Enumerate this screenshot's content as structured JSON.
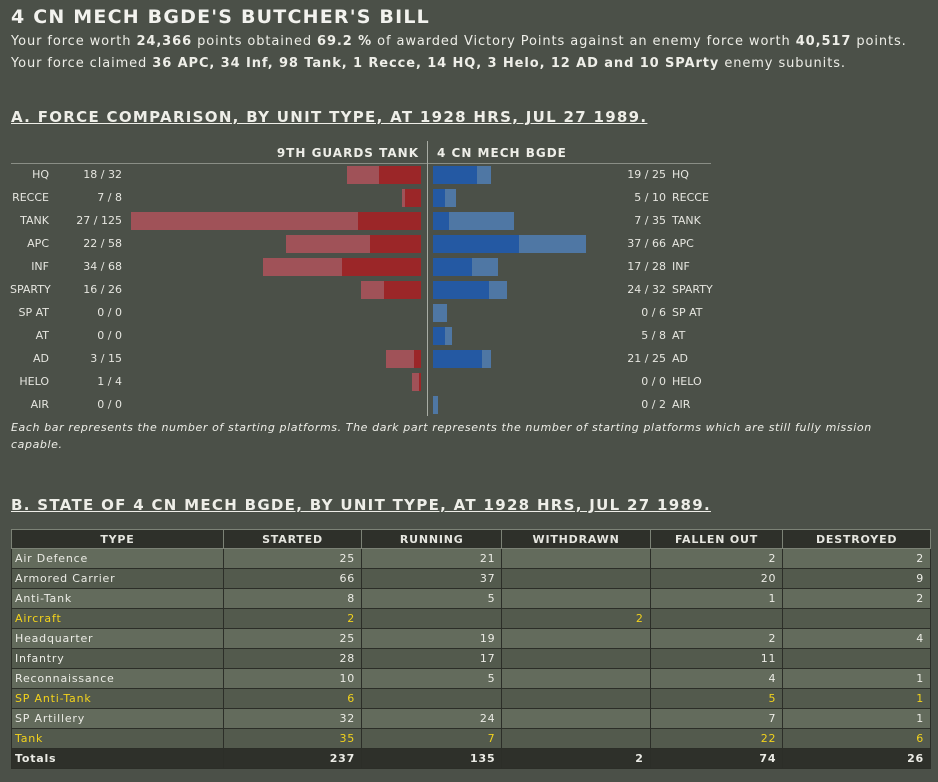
{
  "title": "4 CN MECH BGDE'S BUTCHER'S BILL",
  "summary": {
    "line1_a": "Your force worth ",
    "own_points": "24,366",
    "line1_b": " points obtained ",
    "vp_percent": "69.2 %",
    "line1_c": " of awarded Victory Points against an enemy force worth ",
    "enemy_points": "40,517",
    "line1_d": " points.",
    "line2_a": "Your force claimed ",
    "claims": "36 APC, 34 Inf, 98 Tank, 1 Recce, 14 HQ, 3 Helo, 12 AD and 10 SPArty",
    "line2_b": " enemy subunits."
  },
  "section_a": {
    "heading": "A. FORCE COMPARISON, BY UNIT TYPE, AT 1928 HRS, JUL 27 1989.",
    "enemy_name": "9TH GUARDS TANK",
    "own_name": "4 CN MECH BGDE",
    "note": "Each bar represents the number of starting platforms. The dark part represents the number of starting platforms which are still fully mission capable.",
    "colors": {
      "enemy_total": "#a05258",
      "enemy_running": "#9b2628",
      "own_total": "#4f77a4",
      "own_running": "#2459a3"
    },
    "rows": [
      {
        "type": "HQ",
        "enemy_label": "18 / 32",
        "enemy_running": 18,
        "enemy_total": 32,
        "own_label": "19 / 25",
        "own_running": 19,
        "own_total": 25
      },
      {
        "type": "RECCE",
        "enemy_label": "7 / 8",
        "enemy_running": 7,
        "enemy_total": 8,
        "own_label": "5 / 10",
        "own_running": 5,
        "own_total": 10
      },
      {
        "type": "TANK",
        "enemy_label": "27 / 125",
        "enemy_running": 27,
        "enemy_total": 125,
        "own_label": "7 / 35",
        "own_running": 7,
        "own_total": 35
      },
      {
        "type": "APC",
        "enemy_label": "22 / 58",
        "enemy_running": 22,
        "enemy_total": 58,
        "own_label": "37 / 66",
        "own_running": 37,
        "own_total": 66
      },
      {
        "type": "INF",
        "enemy_label": "34 / 68",
        "enemy_running": 34,
        "enemy_total": 68,
        "own_label": "17 / 28",
        "own_running": 17,
        "own_total": 28
      },
      {
        "type": "SPARTY",
        "enemy_label": "16 / 26",
        "enemy_running": 16,
        "enemy_total": 26,
        "own_label": "24 / 32",
        "own_running": 24,
        "own_total": 32
      },
      {
        "type": "SP AT",
        "enemy_label": "0 / 0",
        "enemy_running": 0,
        "enemy_total": 0,
        "own_label": "0 / 6",
        "own_running": 0,
        "own_total": 6
      },
      {
        "type": "AT",
        "enemy_label": "0 / 0",
        "enemy_running": 0,
        "enemy_total": 0,
        "own_label": "5 / 8",
        "own_running": 5,
        "own_total": 8
      },
      {
        "type": "AD",
        "enemy_label": "3 / 15",
        "enemy_running": 3,
        "enemy_total": 15,
        "own_label": "21 / 25",
        "own_running": 21,
        "own_total": 25
      },
      {
        "type": "HELO",
        "enemy_label": "1 / 4",
        "enemy_running": 1,
        "enemy_total": 4,
        "own_label": "0 / 0",
        "own_running": 0,
        "own_total": 0
      },
      {
        "type": "AIR",
        "enemy_label": "0 / 0",
        "enemy_running": 0,
        "enemy_total": 0,
        "own_label": "0 / 2",
        "own_running": 0,
        "own_total": 2
      }
    ]
  },
  "section_b": {
    "heading": "B. STATE OF 4 CN MECH BGDE, BY UNIT TYPE, AT 1928 HRS, JUL 27 1989.",
    "highlight_color": "#f2d21c",
    "columns": [
      "TYPE",
      "STARTED",
      "RUNNING",
      "WITHDRAWN",
      "FALLEN OUT",
      "DESTROYED"
    ],
    "rows": [
      {
        "type": "Air Defence",
        "started": "25",
        "running": "21",
        "withdrawn": "",
        "fallen_out": "2",
        "destroyed": "2",
        "highlight": false
      },
      {
        "type": "Armored Carrier",
        "started": "66",
        "running": "37",
        "withdrawn": "",
        "fallen_out": "20",
        "destroyed": "9",
        "highlight": false
      },
      {
        "type": "Anti-Tank",
        "started": "8",
        "running": "5",
        "withdrawn": "",
        "fallen_out": "1",
        "destroyed": "2",
        "highlight": false
      },
      {
        "type": "Aircraft",
        "started": "2",
        "running": "",
        "withdrawn": "2",
        "fallen_out": "",
        "destroyed": "",
        "highlight": true
      },
      {
        "type": "Headquarter",
        "started": "25",
        "running": "19",
        "withdrawn": "",
        "fallen_out": "2",
        "destroyed": "4",
        "highlight": false
      },
      {
        "type": "Infantry",
        "started": "28",
        "running": "17",
        "withdrawn": "",
        "fallen_out": "11",
        "destroyed": "",
        "highlight": false
      },
      {
        "type": "Reconnaissance",
        "started": "10",
        "running": "5",
        "withdrawn": "",
        "fallen_out": "4",
        "destroyed": "1",
        "highlight": false
      },
      {
        "type": "SP Anti-Tank",
        "started": "6",
        "running": "",
        "withdrawn": "",
        "fallen_out": "5",
        "destroyed": "1",
        "highlight": true
      },
      {
        "type": "SP Artillery",
        "started": "32",
        "running": "24",
        "withdrawn": "",
        "fallen_out": "7",
        "destroyed": "1",
        "highlight": false
      },
      {
        "type": "Tank",
        "started": "35",
        "running": "7",
        "withdrawn": "",
        "fallen_out": "22",
        "destroyed": "6",
        "highlight": true
      }
    ],
    "totals": {
      "type": "Totals",
      "started": "237",
      "running": "135",
      "withdrawn": "2",
      "fallen_out": "74",
      "destroyed": "26"
    }
  }
}
